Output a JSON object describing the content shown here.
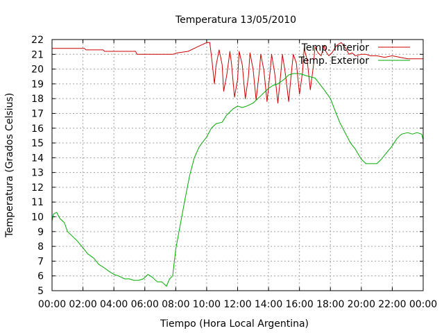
{
  "chart_data": {
    "type": "line",
    "title": "Temperatura 13/05/2010",
    "xlabel": "Tiempo (Hora Local Argentina)",
    "ylabel": "Temperatura (Grados Celsius)",
    "xlim": [
      0,
      24
    ],
    "ylim": [
      5,
      22
    ],
    "x_ticks": [
      "00:00",
      "02:00",
      "04:00",
      "06:00",
      "08:00",
      "10:00",
      "12:00",
      "14:00",
      "16:00",
      "18:00",
      "20:00",
      "22:00",
      "00:00"
    ],
    "y_ticks": [
      "5",
      "6",
      "7",
      "8",
      "9",
      "10",
      "11",
      "12",
      "13",
      "14",
      "15",
      "16",
      "17",
      "18",
      "19",
      "20",
      "21",
      "22"
    ],
    "grid": true,
    "legend_position": "top-right",
    "series": [
      {
        "name": "Temp. Interior",
        "color": "#cc0000",
        "x": [
          0,
          2.1,
          2.2,
          3.3,
          3.4,
          5.4,
          5.5,
          7.8,
          8.1,
          8.8,
          9.4,
          9.8,
          10.0,
          10.2,
          10.35,
          10.5,
          10.6,
          10.8,
          11.0,
          11.1,
          11.3,
          11.5,
          11.6,
          11.8,
          12.0,
          12.1,
          12.3,
          12.5,
          12.7,
          12.8,
          13.0,
          13.2,
          13.4,
          13.5,
          13.7,
          13.9,
          14.1,
          14.2,
          14.4,
          14.6,
          14.8,
          14.9,
          15.1,
          15.3,
          15.5,
          15.6,
          15.8,
          16.0,
          16.2,
          16.3,
          16.5,
          16.7,
          16.9,
          17.0,
          17.2,
          17.4,
          17.6,
          17.7,
          17.9,
          18.1,
          18.4,
          18.7,
          19.0,
          19.2,
          19.4,
          19.6,
          20.0,
          20.3,
          20.6,
          21.0,
          21.5,
          22.0,
          22.5,
          23.0,
          23.5,
          24.0
        ],
        "values": [
          21.4,
          21.4,
          21.3,
          21.3,
          21.2,
          21.2,
          21.0,
          21.0,
          21.1,
          21.2,
          21.5,
          21.7,
          21.8,
          21.8,
          20.5,
          19.0,
          20.2,
          21.3,
          20.3,
          18.5,
          19.6,
          21.2,
          20.4,
          18.1,
          19.3,
          21.2,
          20.3,
          18.0,
          19.5,
          21.1,
          20.0,
          17.9,
          19.8,
          21.0,
          19.9,
          17.8,
          19.8,
          21.0,
          19.7,
          17.7,
          19.8,
          21.0,
          19.6,
          17.8,
          20.0,
          21.0,
          20.4,
          18.3,
          19.8,
          21.4,
          20.6,
          18.6,
          20.2,
          21.5,
          21.1,
          20.9,
          21.6,
          21.2,
          20.9,
          21.1,
          21.6,
          21.8,
          21.4,
          21.0,
          21.1,
          20.9,
          21.0,
          21.0,
          20.9,
          20.9,
          20.8,
          20.9,
          20.8,
          20.7,
          20.7,
          20.7
        ]
      },
      {
        "name": "Temp. Exterior",
        "color": "#00aa00",
        "x": [
          0,
          0.1,
          0.3,
          0.5,
          0.8,
          1.0,
          1.3,
          1.6,
          2.0,
          2.3,
          2.7,
          3.0,
          3.3,
          3.7,
          4.0,
          4.3,
          4.7,
          5.0,
          5.3,
          5.6,
          5.9,
          6.2,
          6.5,
          6.8,
          7.1,
          7.4,
          7.6,
          7.8,
          8.0,
          8.3,
          8.6,
          8.9,
          9.2,
          9.5,
          9.7,
          10.0,
          10.3,
          10.6,
          11.0,
          11.3,
          11.7,
          12.0,
          12.3,
          12.6,
          13.0,
          13.3,
          13.6,
          14.0,
          14.3,
          14.6,
          15.0,
          15.3,
          15.6,
          16.0,
          16.3,
          16.6,
          17.0,
          17.3,
          17.6,
          18.0,
          18.3,
          18.6,
          19.0,
          19.3,
          19.6,
          20.0,
          20.3,
          20.6,
          21.0,
          21.3,
          21.6,
          22.0,
          22.3,
          22.6,
          23.0,
          23.3,
          23.6,
          23.9,
          24.0
        ],
        "values": [
          9.7,
          10.2,
          10.3,
          9.9,
          9.6,
          9.0,
          8.7,
          8.4,
          7.9,
          7.5,
          7.2,
          6.8,
          6.6,
          6.3,
          6.1,
          6.0,
          5.8,
          5.8,
          5.7,
          5.7,
          5.8,
          6.1,
          5.9,
          5.6,
          5.6,
          5.3,
          5.8,
          6.0,
          7.8,
          9.5,
          11.2,
          12.8,
          14.0,
          14.7,
          15.0,
          15.4,
          16.0,
          16.3,
          16.4,
          16.9,
          17.3,
          17.5,
          17.4,
          17.5,
          17.7,
          18.0,
          18.3,
          18.7,
          18.9,
          19.0,
          19.3,
          19.6,
          19.7,
          19.7,
          19.6,
          19.5,
          19.4,
          19.0,
          18.6,
          18.0,
          17.2,
          16.4,
          15.6,
          15.0,
          14.6,
          13.9,
          13.6,
          13.6,
          13.6,
          13.9,
          14.3,
          14.8,
          15.3,
          15.6,
          15.7,
          15.6,
          15.7,
          15.6,
          15.2
        ]
      }
    ]
  }
}
